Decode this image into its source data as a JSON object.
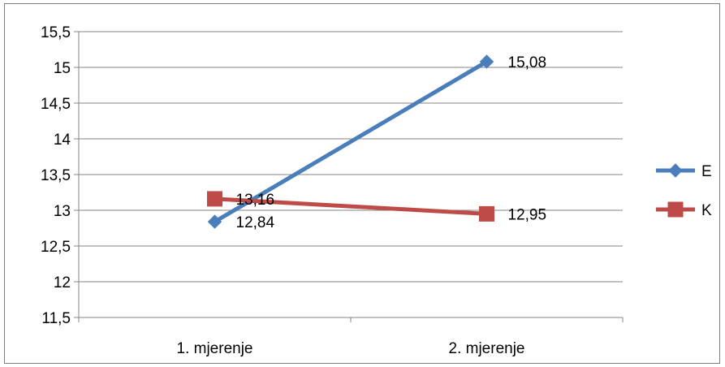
{
  "chart_data": {
    "type": "line",
    "categories": [
      "1. mjerenje",
      "2. mjerenje"
    ],
    "series": [
      {
        "name": "E",
        "values": [
          12.84,
          15.08
        ],
        "labels": [
          "12,84",
          "15,08"
        ],
        "color": "#4a7ebb",
        "marker": "diamond"
      },
      {
        "name": "K",
        "values": [
          13.16,
          12.95
        ],
        "labels": [
          "13,16",
          "12,95"
        ],
        "color": "#be4b48",
        "marker": "square"
      }
    ],
    "ylim": [
      11.5,
      15.5
    ],
    "yticks": [
      11.5,
      12,
      12.5,
      13,
      13.5,
      14,
      14.5,
      15,
      15.5
    ],
    "ytick_labels": [
      "11,5",
      "12",
      "12,5",
      "13",
      "13,5",
      "14",
      "14,5",
      "15",
      "15,5"
    ],
    "grid": true,
    "legend": "right"
  }
}
